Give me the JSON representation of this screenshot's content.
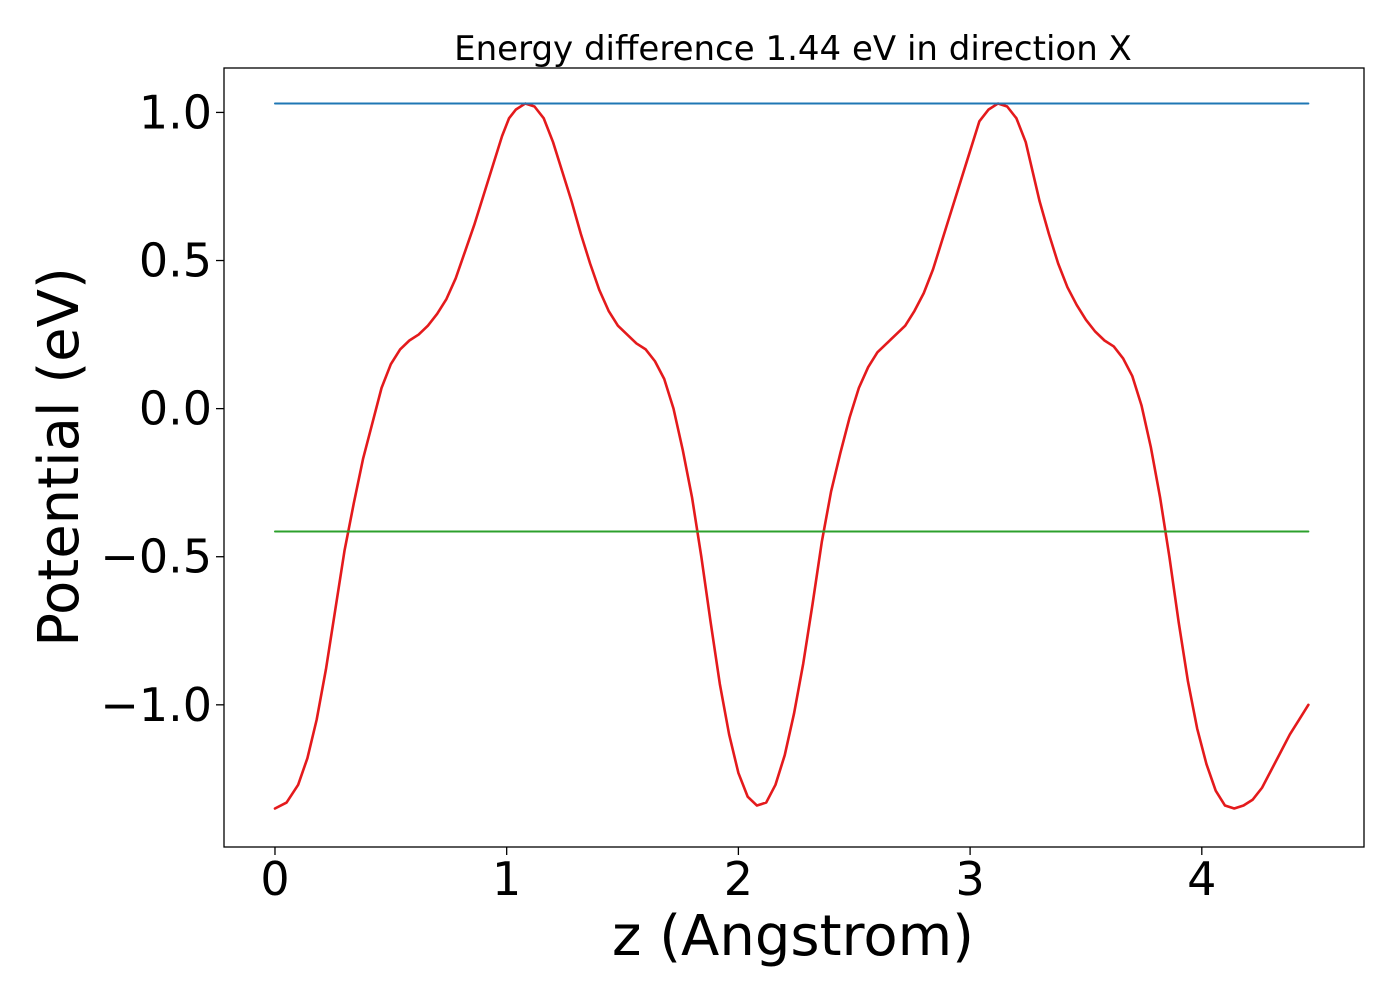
{
  "chart_data": {
    "type": "line",
    "title": "Energy difference 1.44 eV in direction X",
    "xlabel": "z (Angstrom)",
    "ylabel": "Potential (eV)",
    "xlim": [
      -0.22,
      4.7
    ],
    "ylim": [
      -1.48,
      1.15
    ],
    "xticks": [
      0,
      1,
      2,
      3,
      4
    ],
    "xtick_labels": [
      "0",
      "1",
      "2",
      "3",
      "4"
    ],
    "yticks": [
      -1.0,
      -0.5,
      0.0,
      0.5,
      1.0
    ],
    "ytick_labels": [
      "−1.0",
      "−0.5",
      "0.0",
      "0.5",
      "1.0"
    ],
    "grid": false,
    "legend": "none",
    "series": [
      {
        "color": "#e41a1c",
        "style": "line",
        "x": [
          0.0,
          0.05,
          0.1,
          0.14,
          0.18,
          0.22,
          0.26,
          0.3,
          0.34,
          0.38,
          0.42,
          0.46,
          0.5,
          0.54,
          0.58,
          0.62,
          0.66,
          0.7,
          0.74,
          0.78,
          0.82,
          0.86,
          0.9,
          0.94,
          0.98,
          1.01,
          1.04,
          1.08,
          1.12,
          1.16,
          1.2,
          1.24,
          1.28,
          1.32,
          1.36,
          1.4,
          1.44,
          1.48,
          1.52,
          1.56,
          1.6,
          1.64,
          1.68,
          1.72,
          1.76,
          1.8,
          1.84,
          1.88,
          1.92,
          1.96,
          2.0,
          2.04,
          2.08,
          2.12,
          2.16,
          2.2,
          2.24,
          2.28,
          2.32,
          2.36,
          2.4,
          2.44,
          2.48,
          2.52,
          2.56,
          2.6,
          2.64,
          2.68,
          2.72,
          2.76,
          2.8,
          2.84,
          2.88,
          2.92,
          2.96,
          3.0,
          3.04,
          3.08,
          3.12,
          3.16,
          3.2,
          3.24,
          3.27,
          3.3,
          3.34,
          3.38,
          3.42,
          3.46,
          3.5,
          3.54,
          3.58,
          3.62,
          3.66,
          3.7,
          3.74,
          3.78,
          3.82,
          3.86,
          3.9,
          3.94,
          3.98,
          4.02,
          4.06,
          4.1,
          4.14,
          4.18,
          4.22,
          4.26,
          4.3,
          4.34,
          4.38,
          4.42,
          4.46
        ],
        "y": [
          -1.35,
          -1.33,
          -1.27,
          -1.18,
          -1.05,
          -0.88,
          -0.68,
          -0.48,
          -0.32,
          -0.17,
          -0.05,
          0.07,
          0.15,
          0.2,
          0.23,
          0.25,
          0.28,
          0.32,
          0.37,
          0.44,
          0.53,
          0.62,
          0.72,
          0.82,
          0.92,
          0.98,
          1.01,
          1.03,
          1.02,
          0.98,
          0.9,
          0.8,
          0.7,
          0.59,
          0.49,
          0.4,
          0.33,
          0.28,
          0.25,
          0.22,
          0.2,
          0.16,
          0.1,
          0.0,
          -0.14,
          -0.3,
          -0.5,
          -0.72,
          -0.93,
          -1.1,
          -1.23,
          -1.31,
          -1.34,
          -1.33,
          -1.27,
          -1.17,
          -1.03,
          -0.86,
          -0.66,
          -0.45,
          -0.28,
          -0.15,
          -0.03,
          0.07,
          0.14,
          0.19,
          0.22,
          0.25,
          0.28,
          0.33,
          0.39,
          0.47,
          0.57,
          0.67,
          0.77,
          0.87,
          0.97,
          1.01,
          1.03,
          1.02,
          0.98,
          0.9,
          0.8,
          0.7,
          0.59,
          0.49,
          0.41,
          0.35,
          0.3,
          0.26,
          0.23,
          0.21,
          0.17,
          0.11,
          0.01,
          -0.13,
          -0.3,
          -0.5,
          -0.72,
          -0.92,
          -1.08,
          -1.2,
          -1.29,
          -1.34,
          -1.35,
          -1.34,
          -1.32,
          -1.28,
          -1.22,
          -1.16,
          -1.1,
          -1.05,
          -1.0
        ]
      },
      {
        "color": "#1f77b4",
        "style": "hline",
        "x": [
          0.0,
          4.46
        ],
        "y": [
          1.03,
          1.03
        ]
      },
      {
        "color": "#2ca02c",
        "style": "hline",
        "x": [
          0.0,
          4.46
        ],
        "y": [
          -0.415,
          -0.415
        ]
      }
    ]
  }
}
